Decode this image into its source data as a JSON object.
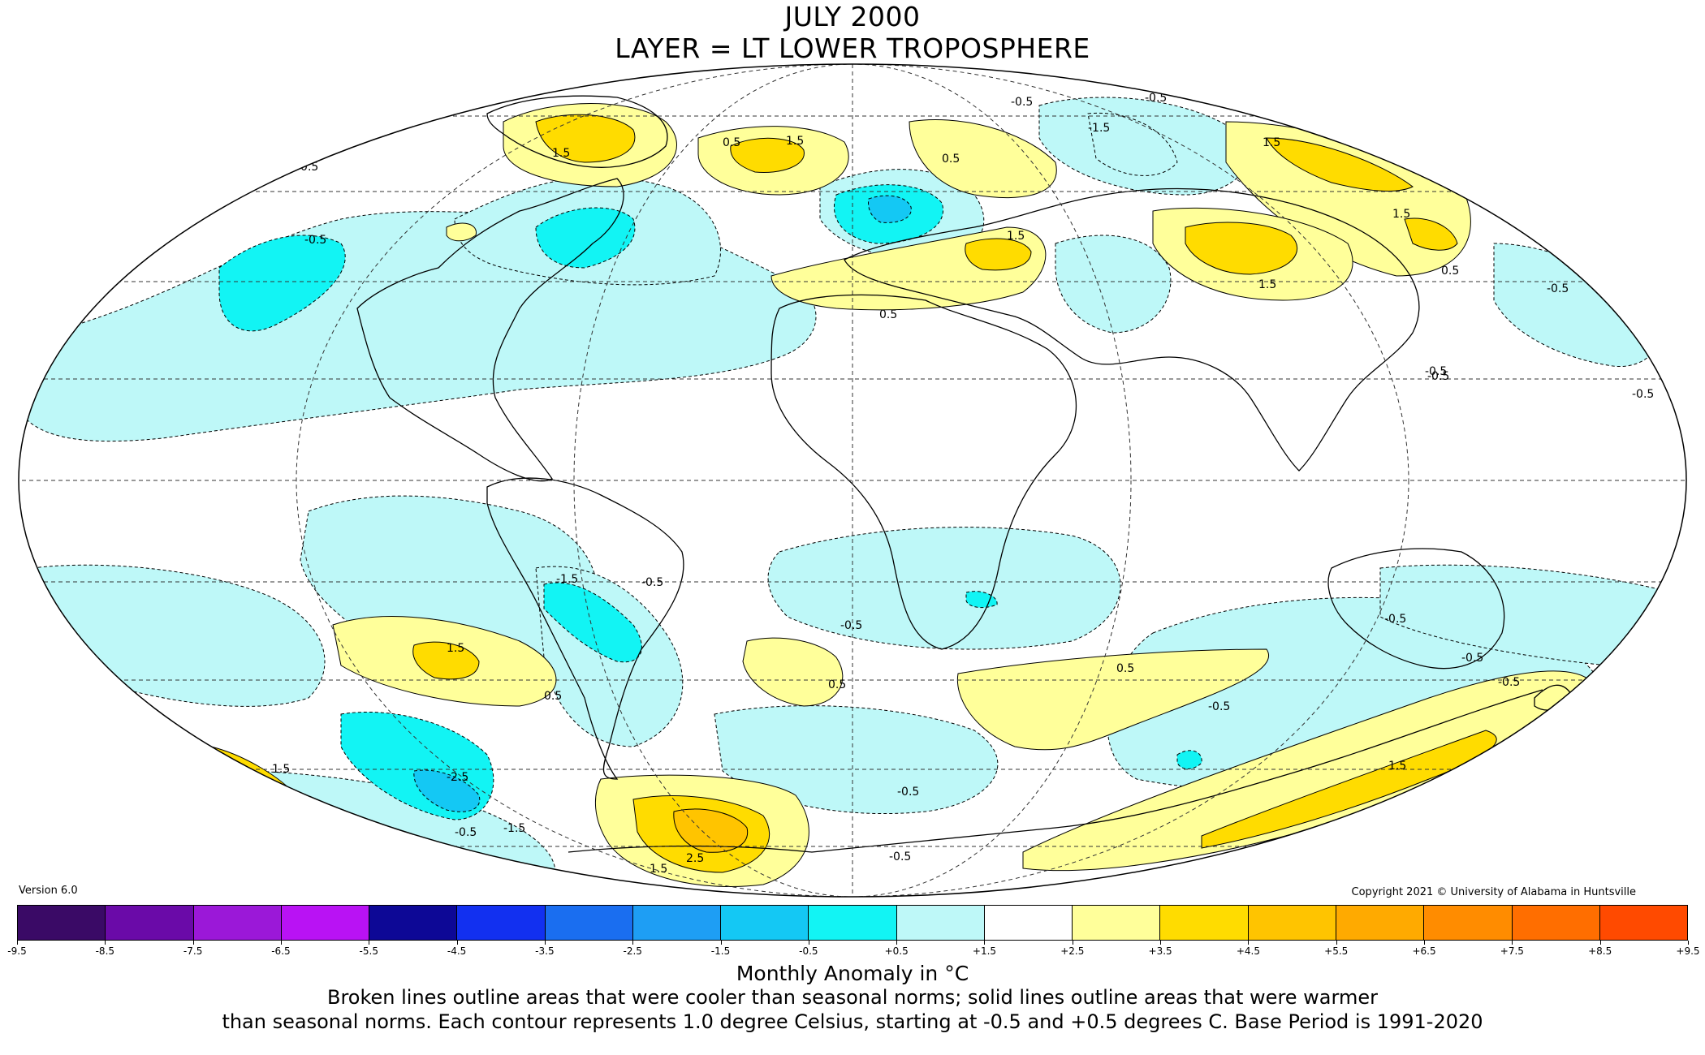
{
  "title": "JULY 2000",
  "subtitle": "LAYER = LT LOWER TROPOSPHERE",
  "version": "Version 6.0",
  "copyright": "Copyright 2021 © University of Alabama in Huntsville",
  "colorbar": {
    "label": "Monthly Anomaly in °C",
    "ticks": [
      "-9.5",
      "-8.5",
      "-7.5",
      "-6.5",
      "-5.5",
      "-4.5",
      "-3.5",
      "-2.5",
      "-1.5",
      "-0.5",
      "+0.5",
      "+1.5",
      "+2.5",
      "+3.5",
      "+4.5",
      "+5.5",
      "+6.5",
      "+7.5",
      "+8.5",
      "+9.5"
    ],
    "colors": [
      "#3a0a66",
      "#6a0aa8",
      "#9b18d8",
      "#b912f4",
      "#0d0896",
      "#1230f0",
      "#1a6ef0",
      "#1e9ef4",
      "#14c8f4",
      "#12f4f4",
      "#bef8f8",
      "#ffffff",
      "#ffff9a",
      "#ffdc00",
      "#ffc400",
      "#ffaa00",
      "#ff8c00",
      "#ff6e00",
      "#ff4a00",
      "#ff0a00",
      "#e80000",
      "#b40000"
    ]
  },
  "caption_line1": "Broken lines outline areas that were cooler than seasonal norms; solid lines outline areas that were warmer",
  "caption_line2": "than seasonal norms. Each contour represents 1.0 degree Celsius, starting at -0.5 and +0.5 degrees C. Base Period is 1991-2020",
  "map": {
    "colors": {
      "cool_light": "#bef8f8",
      "cool_mid": "#12f4f4",
      "cool_strong": "#14c8f4",
      "warm_light": "#ffff9a",
      "warm_mid": "#ffdc00",
      "warm_strong": "#ffc400"
    },
    "contour_labels": [
      "1.5",
      "1.5",
      "0.5",
      "0.5",
      "-1.5",
      "-0.5",
      "-0.5",
      "1.5",
      "1.5",
      "1.5",
      "0.5",
      "1.5",
      "-0.5",
      "-0.5",
      "-0.5",
      "-0.5",
      "-1.5",
      "-0.5",
      "1.5",
      "0.5",
      "-0.5",
      "-2.5",
      "-1.5",
      "-0.5",
      "2.5",
      "1.5",
      "0.5",
      "-0.5",
      "-0.5",
      "-0.5",
      "0.5",
      "-0.5",
      "-0.5",
      "-0.5",
      "-0.5",
      "1.5",
      "1.5",
      "-0.5",
      "0.5",
      "-0.5"
    ]
  }
}
